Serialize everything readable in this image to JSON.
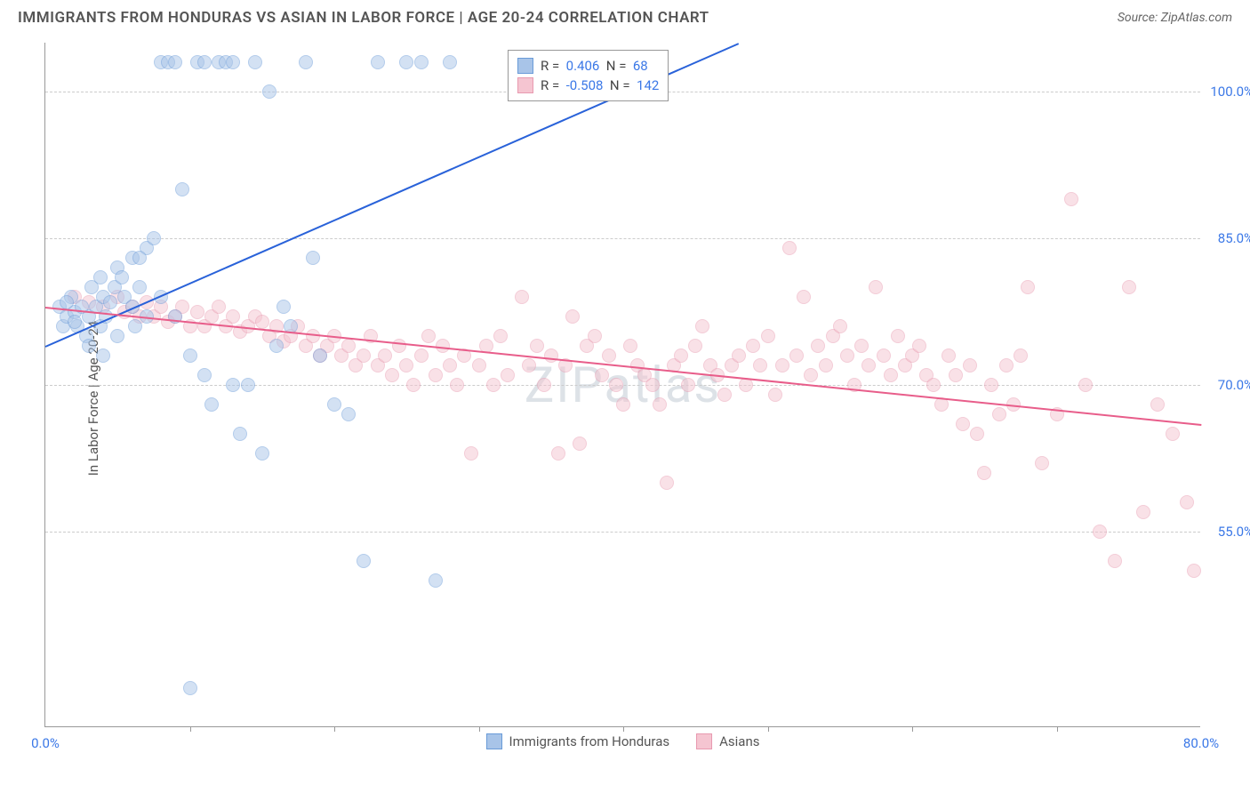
{
  "title": "IMMIGRANTS FROM HONDURAS VS ASIAN IN LABOR FORCE | AGE 20-24 CORRELATION CHART",
  "source_prefix": "Source: ",
  "source_name": "ZipAtlas.com",
  "watermark": "ZIPatlas",
  "chart": {
    "type": "scatter",
    "y_axis_label": "In Labor Force | Age 20-24",
    "xlim": [
      0,
      80
    ],
    "ylim": [
      35,
      105
    ],
    "x_ticks": [
      0,
      80
    ],
    "x_tick_labels": [
      "0.0%",
      "80.0%"
    ],
    "x_minor_ticks": [
      10,
      20,
      30,
      40,
      50,
      60,
      70
    ],
    "y_ticks": [
      55,
      70,
      85,
      100
    ],
    "y_tick_labels": [
      "55.0%",
      "70.0%",
      "85.0%",
      "100.0%"
    ],
    "background_color": "#ffffff",
    "grid_color": "#cccccc",
    "axis_color": "#999999",
    "point_radius": 8,
    "point_opacity": 0.5,
    "series": [
      {
        "name": "Immigrants from Honduras",
        "color": "#6a9bd8",
        "fill_color": "#a8c4e8",
        "line_color": "#2962d9",
        "R": 0.406,
        "N": 68,
        "trend": {
          "x1": 0,
          "y1": 74,
          "x2": 48,
          "y2": 105
        },
        "points": [
          [
            1,
            78
          ],
          [
            1.2,
            76
          ],
          [
            1.5,
            77
          ],
          [
            1.8,
            79
          ],
          [
            2,
            77.5
          ],
          [
            2.2,
            76
          ],
          [
            2.5,
            78
          ],
          [
            2.8,
            75
          ],
          [
            3,
            77
          ],
          [
            3.2,
            80
          ],
          [
            3.5,
            78
          ],
          [
            3.8,
            76
          ],
          [
            4,
            79
          ],
          [
            4.2,
            77
          ],
          [
            4.5,
            78.5
          ],
          [
            4.8,
            80
          ],
          [
            5,
            82
          ],
          [
            5.3,
            81
          ],
          [
            5.5,
            79
          ],
          [
            6,
            83
          ],
          [
            6.2,
            76
          ],
          [
            6.5,
            80
          ],
          [
            7,
            84
          ],
          [
            7.5,
            85
          ],
          [
            8,
            103
          ],
          [
            8.5,
            103
          ],
          [
            9,
            103
          ],
          [
            9.5,
            90
          ],
          [
            10,
            73
          ],
          [
            10.5,
            103
          ],
          [
            11,
            103
          ],
          [
            11.5,
            68
          ],
          [
            12,
            103
          ],
          [
            12.5,
            103
          ],
          [
            13,
            103
          ],
          [
            13.5,
            65
          ],
          [
            14,
            70
          ],
          [
            14.5,
            103
          ],
          [
            15,
            63
          ],
          [
            15.5,
            100
          ],
          [
            16,
            74
          ],
          [
            16.5,
            78
          ],
          [
            17,
            76
          ],
          [
            18,
            103
          ],
          [
            18.5,
            83
          ],
          [
            19,
            73
          ],
          [
            20,
            68
          ],
          [
            21,
            67
          ],
          [
            22,
            52
          ],
          [
            23,
            103
          ],
          [
            25,
            103
          ],
          [
            26,
            103
          ],
          [
            27,
            50
          ],
          [
            28,
            103
          ],
          [
            10,
            39
          ],
          [
            3,
            74
          ],
          [
            4,
            73
          ],
          [
            5,
            75
          ],
          [
            6,
            78
          ],
          [
            7,
            77
          ],
          [
            8,
            79
          ],
          [
            2,
            76.5
          ],
          [
            1.5,
            78.5
          ],
          [
            3.8,
            81
          ],
          [
            6.5,
            83
          ],
          [
            9,
            77
          ],
          [
            11,
            71
          ],
          [
            13,
            70
          ]
        ]
      },
      {
        "name": "Asians",
        "color": "#e89ab0",
        "fill_color": "#f5c5d1",
        "line_color": "#e85d8a",
        "R": -0.508,
        "N": 142,
        "trend": {
          "x1": 0,
          "y1": 78,
          "x2": 80,
          "y2": 66
        },
        "points": [
          [
            2,
            79
          ],
          [
            3,
            78.5
          ],
          [
            4,
            78
          ],
          [
            5,
            79
          ],
          [
            5.5,
            77.5
          ],
          [
            6,
            78
          ],
          [
            6.5,
            77
          ],
          [
            7,
            78.5
          ],
          [
            7.5,
            77
          ],
          [
            8,
            78
          ],
          [
            8.5,
            76.5
          ],
          [
            9,
            77
          ],
          [
            9.5,
            78
          ],
          [
            10,
            76
          ],
          [
            10.5,
            77.5
          ],
          [
            11,
            76
          ],
          [
            11.5,
            77
          ],
          [
            12,
            78
          ],
          [
            12.5,
            76
          ],
          [
            13,
            77
          ],
          [
            13.5,
            75.5
          ],
          [
            14,
            76
          ],
          [
            14.5,
            77
          ],
          [
            15,
            76.5
          ],
          [
            15.5,
            75
          ],
          [
            16,
            76
          ],
          [
            16.5,
            74.5
          ],
          [
            17,
            75
          ],
          [
            17.5,
            76
          ],
          [
            18,
            74
          ],
          [
            18.5,
            75
          ],
          [
            19,
            73
          ],
          [
            19.5,
            74
          ],
          [
            20,
            75
          ],
          [
            20.5,
            73
          ],
          [
            21,
            74
          ],
          [
            21.5,
            72
          ],
          [
            22,
            73
          ],
          [
            22.5,
            75
          ],
          [
            23,
            72
          ],
          [
            23.5,
            73
          ],
          [
            24,
            71
          ],
          [
            24.5,
            74
          ],
          [
            25,
            72
          ],
          [
            25.5,
            70
          ],
          [
            26,
            73
          ],
          [
            26.5,
            75
          ],
          [
            27,
            71
          ],
          [
            27.5,
            74
          ],
          [
            28,
            72
          ],
          [
            28.5,
            70
          ],
          [
            29,
            73
          ],
          [
            29.5,
            63
          ],
          [
            30,
            72
          ],
          [
            30.5,
            74
          ],
          [
            31,
            70
          ],
          [
            31.5,
            75
          ],
          [
            32,
            71
          ],
          [
            33,
            79
          ],
          [
            33.5,
            72
          ],
          [
            34,
            74
          ],
          [
            34.5,
            70
          ],
          [
            35,
            73
          ],
          [
            35.5,
            63
          ],
          [
            36,
            72
          ],
          [
            36.5,
            77
          ],
          [
            37,
            64
          ],
          [
            37.5,
            74
          ],
          [
            38,
            75
          ],
          [
            38.5,
            71
          ],
          [
            39,
            73
          ],
          [
            39.5,
            70
          ],
          [
            40,
            68
          ],
          [
            40.5,
            74
          ],
          [
            41,
            72
          ],
          [
            41.5,
            71
          ],
          [
            42,
            70
          ],
          [
            42.5,
            68
          ],
          [
            43,
            60
          ],
          [
            43.5,
            72
          ],
          [
            44,
            73
          ],
          [
            44.5,
            70
          ],
          [
            45,
            74
          ],
          [
            45.5,
            76
          ],
          [
            46,
            72
          ],
          [
            46.5,
            71
          ],
          [
            47,
            69
          ],
          [
            47.5,
            72
          ],
          [
            48,
            73
          ],
          [
            48.5,
            70
          ],
          [
            49,
            74
          ],
          [
            49.5,
            72
          ],
          [
            50,
            75
          ],
          [
            50.5,
            69
          ],
          [
            51,
            72
          ],
          [
            51.5,
            84
          ],
          [
            52,
            73
          ],
          [
            52.5,
            79
          ],
          [
            53,
            71
          ],
          [
            53.5,
            74
          ],
          [
            54,
            72
          ],
          [
            54.5,
            75
          ],
          [
            55,
            76
          ],
          [
            55.5,
            73
          ],
          [
            56,
            70
          ],
          [
            56.5,
            74
          ],
          [
            57,
            72
          ],
          [
            57.5,
            80
          ],
          [
            58,
            73
          ],
          [
            58.5,
            71
          ],
          [
            59,
            75
          ],
          [
            59.5,
            72
          ],
          [
            60,
            73
          ],
          [
            60.5,
            74
          ],
          [
            61,
            71
          ],
          [
            61.5,
            70
          ],
          [
            62,
            68
          ],
          [
            62.5,
            73
          ],
          [
            63,
            71
          ],
          [
            63.5,
            66
          ],
          [
            64,
            72
          ],
          [
            64.5,
            65
          ],
          [
            65,
            61
          ],
          [
            65.5,
            70
          ],
          [
            66,
            67
          ],
          [
            66.5,
            72
          ],
          [
            67,
            68
          ],
          [
            67.5,
            73
          ],
          [
            68,
            80
          ],
          [
            69,
            62
          ],
          [
            70,
            67
          ],
          [
            71,
            89
          ],
          [
            72,
            70
          ],
          [
            73,
            55
          ],
          [
            74,
            52
          ],
          [
            75,
            80
          ],
          [
            76,
            57
          ],
          [
            77,
            68
          ],
          [
            78,
            65
          ],
          [
            79,
            58
          ],
          [
            79.5,
            51
          ]
        ]
      }
    ],
    "legend_items": [
      {
        "label": "Immigrants from Honduras",
        "color": "#6a9bd8",
        "fill": "#a8c4e8"
      },
      {
        "label": "Asians",
        "color": "#e89ab0",
        "fill": "#f5c5d1"
      }
    ]
  }
}
